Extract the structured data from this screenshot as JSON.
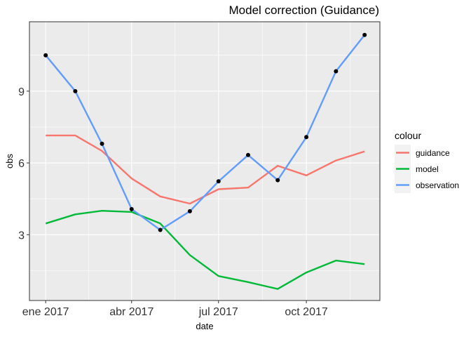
{
  "chart_data": {
    "type": "line",
    "title": "Model correction (Guidance)",
    "xlabel": "date",
    "ylabel": "obs",
    "x": [
      "2017-01-01",
      "2017-02-01",
      "2017-03-01",
      "2017-04-01",
      "2017-05-01",
      "2017-06-01",
      "2017-07-01",
      "2017-08-01",
      "2017-09-01",
      "2017-10-01",
      "2017-11-01",
      "2017-12-01"
    ],
    "x_ticks": [
      {
        "date": "2017-01-01",
        "label": "ene 2017"
      },
      {
        "date": "2017-04-01",
        "label": "abr 2017"
      },
      {
        "date": "2017-07-01",
        "label": "jul 2017"
      },
      {
        "date": "2017-10-01",
        "label": "oct 2017"
      }
    ],
    "xlim": [
      "2016-12-15",
      "2017-12-17"
    ],
    "y_ticks": [
      3,
      6,
      9
    ],
    "ylim": [
      0.25,
      11.9
    ],
    "grid": true,
    "legend_title": "colour",
    "legend_position": "right",
    "series": [
      {
        "name": "guidance",
        "color": "#F8766D",
        "values": [
          7.15,
          7.15,
          6.5,
          5.35,
          4.6,
          4.3,
          4.9,
          4.97,
          5.88,
          5.48,
          6.1,
          6.48
        ]
      },
      {
        "name": "model",
        "color": "#00BA38",
        "values": [
          3.47,
          3.85,
          4.0,
          3.95,
          3.47,
          2.15,
          1.27,
          1.02,
          0.73,
          1.42,
          1.92,
          1.77
        ]
      },
      {
        "name": "observation",
        "color": "#619CFF",
        "values": [
          10.5,
          9.0,
          6.8,
          4.07,
          3.2,
          3.98,
          5.23,
          6.33,
          5.28,
          7.08,
          9.83,
          11.35
        ]
      }
    ],
    "points": {
      "series": "observation",
      "color": "#000000"
    }
  }
}
